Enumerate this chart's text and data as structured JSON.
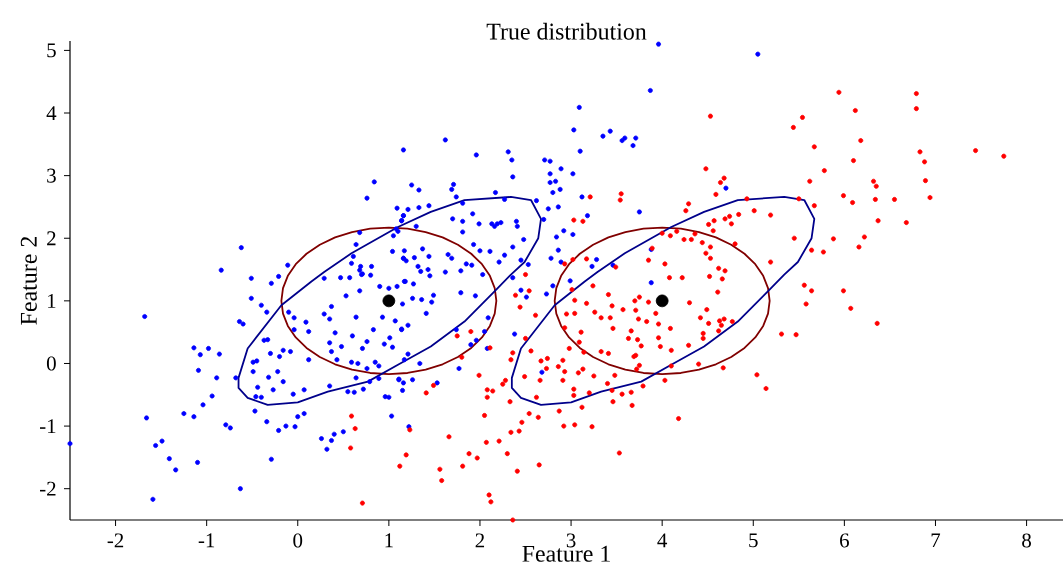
{
  "chart_data": {
    "type": "scatter",
    "title": "True distribution",
    "xlabel": "Feature 1",
    "ylabel": "Feature 2",
    "xlim": [
      -2.5,
      8.4
    ],
    "ylim": [
      -2.5,
      5.15
    ],
    "xticks": [
      -2,
      -1,
      0,
      1,
      2,
      3,
      4,
      5,
      6,
      7,
      8
    ],
    "yticks": [
      -2,
      -1,
      0,
      1,
      2,
      3,
      4,
      5
    ],
    "marker": "circle",
    "series": [
      {
        "color": "#0000ff",
        "x": [
          0.76,
          0.84,
          1.16,
          1.62,
          1.96,
          2.31,
          2.36,
          2.71,
          3.09,
          3.03,
          3.35,
          3.43,
          3.56,
          3.59,
          3.71,
          3.68,
          3.1,
          3.87,
          3.96,
          5.05,
          -1.68,
          -1.66,
          -1.56,
          -1.49,
          -1.41,
          -1.34,
          -1.59,
          -2.5,
          -1.25,
          -1.14,
          -1.1,
          -1.04,
          -0.94,
          -0.89,
          -1.09,
          -1.14,
          -1.07,
          -0.98,
          -0.86,
          -0.79,
          -0.74,
          -0.63,
          -0.68,
          -0.64,
          -0.6,
          -0.51,
          -0.51,
          -0.4,
          -0.34,
          -0.49,
          -0.45,
          -0.49,
          -0.44,
          -0.46,
          -0.4,
          -0.47,
          -0.34,
          -0.29,
          -0.37,
          -0.33,
          -0.3,
          -0.2,
          -0.16,
          -0.08,
          -0.32,
          -0.27,
          -0.22,
          -0.16,
          -0.21,
          -0.13,
          -0.03,
          0,
          0.07,
          -0.05,
          0.07,
          0.26,
          0.32,
          0.37,
          0.4,
          0.5,
          -0.29,
          -0.21,
          -0.1,
          -0.04,
          -0.04,
          0.09,
          0.12,
          0.12,
          -0.84,
          -0.62,
          -0.11,
          0.29,
          0.35,
          0.37,
          0.41,
          0.35,
          0.37,
          0.43,
          0.48,
          0.35,
          0.55,
          0.62,
          0.64,
          0.72,
          0.79,
          0.89,
          0.96,
          1.0,
          1.03,
          1.11,
          1.15,
          0.59,
          0.66,
          0.76,
          0.85,
          0.89,
          0.6,
          0.64,
          0.68,
          0.9,
          1.0,
          1.09,
          0.53,
          0.83,
          0.93,
          1.07,
          1.14,
          1.04,
          0.95,
          1.01,
          0.71,
          0.76,
          0.29,
          0.47,
          0.57,
          0.7,
          1.18,
          1.15,
          0.59,
          0.61,
          0.64,
          0.68,
          0.68,
          0.69,
          0.71,
          0.81,
          0.8,
          1.04,
          1.05,
          1.08,
          1.1,
          1.09,
          1.14,
          1.16,
          1.16,
          1.19,
          1.17,
          1.27,
          1.45,
          1.26,
          1.36,
          1.47,
          1.49,
          1.41,
          1.79,
          1.95,
          1.21,
          1.14,
          1.74,
          2.09,
          2.05,
          1.96,
          1.9,
          2.08,
          1.21,
          1.17,
          1.34,
          1.77,
          1.11,
          1.26,
          1.16,
          1.53,
          1.22,
          2.38,
          2.68,
          2.45,
          2.51,
          2.73,
          2.8,
          2.99,
          3.88,
          2.36,
          2.03,
          2.35,
          2.77,
          2.89,
          2.77,
          2.83,
          2.77,
          2.88,
          2.8,
          3.02,
          3.12,
          2.86,
          2.75,
          2.7,
          2.62,
          3.18,
          3.75,
          4.7,
          2.17,
          1.25,
          1.33,
          1.71,
          1.69,
          1.74,
          1.44,
          1.33,
          1.21,
          1.16,
          1.14,
          1.3,
          1.81,
          1.7,
          1.81,
          1.81,
          1.92,
          1.99,
          2.13,
          2.19,
          2.23,
          2.16,
          2.27,
          2.4,
          2.41,
          2.48,
          2.36,
          2.27,
          1.93,
          2.0,
          2.11,
          1.65,
          1.69,
          1.17,
          1.28,
          1.37,
          1.44,
          1.16,
          1.32,
          1.35,
          1.43,
          1.62,
          1.79,
          1.85,
          1.91,
          2.21,
          2.45,
          2.53,
          2.84,
          2.92,
          2.86,
          2.78,
          2.89,
          3.02,
          3.23,
          3.28,
          3.46,
          3.88
        ],
        "values": [
          2.64,
          2.9,
          3.41,
          3.57,
          3.33,
          3.38,
          2.98,
          3.25,
          4.09,
          3.73,
          3.63,
          3.71,
          3.56,
          3.6,
          3.6,
          3.48,
          3.39,
          4.36,
          5.1,
          4.94,
          0.75,
          -0.87,
          -1.31,
          -1.24,
          -1.52,
          -1.7,
          -2.17,
          -1.28,
          -0.8,
          -0.85,
          -1.58,
          -0.66,
          -0.52,
          -0.23,
          -0.11,
          0.25,
          0.14,
          0.24,
          0.15,
          -0.98,
          -1.03,
          -2.0,
          -0.23,
          0.67,
          0.63,
          1.04,
          1.36,
          0.93,
          0.82,
          0.02,
          0.04,
          -0.13,
          -0.38,
          -0.53,
          -0.54,
          -0.76,
          -0.93,
          -1.53,
          0.37,
          0.38,
          0.16,
          0.11,
          0.21,
          0.19,
          -0.22,
          -0.42,
          -0.13,
          -0.29,
          -1.07,
          -1.0,
          -1.01,
          -0.85,
          -0.8,
          -0.49,
          -0.42,
          -1.2,
          -1.37,
          -1.23,
          -1.13,
          -1.09,
          1.28,
          1.39,
          0.82,
          0.73,
          0.54,
          0.66,
          0.51,
          0.06,
          1.49,
          1.85,
          1.57,
          0.79,
          0.71,
          0.91,
          0.49,
          0.33,
          0.19,
          0.06,
          0.27,
          -0.36,
          -0.45,
          -0.46,
          -0.23,
          -0.41,
          -0.29,
          -0.24,
          -0.53,
          -0.54,
          -0.84,
          -0.26,
          -0.43,
          0.02,
          0.0,
          -0.08,
          0.02,
          -0.04,
          0.44,
          0.74,
          1.16,
          1.23,
          1.2,
          1.23,
          1.08,
          0.54,
          0.74,
          0.68,
          0.54,
          0.26,
          0.31,
          0.41,
          0.24,
          0.35,
          1.36,
          1.37,
          1.37,
          1.42,
          1.31,
          0.95,
          1.6,
          1.71,
          1.9,
          2.09,
          1.49,
          1.55,
          1.43,
          1.55,
          1.41,
          1.79,
          2.04,
          2.15,
          2.11,
          2.48,
          2.28,
          2.36,
          1.68,
          1.64,
          1.31,
          1.27,
          1.4,
          1.04,
          1.02,
          0.98,
          1.09,
          0.8,
          1.13,
          1.08,
          0.61,
          0.55,
          0.54,
          0.73,
          0.51,
          0.37,
          0.3,
          0.24,
          0.15,
          0.06,
          0.0,
          -0.08,
          -0.25,
          -0.26,
          -0.31,
          -0.31,
          -1.01,
          0.47,
          -0.14,
          1.17,
          1.06,
          1.11,
          1.24,
          1.32,
          1.29,
          1.37,
          1.42,
          3.25,
          3.23,
          3.11,
          3.03,
          2.91,
          2.89,
          2.78,
          2.73,
          3.03,
          2.66,
          2.5,
          2.47,
          2.3,
          2.6,
          2.36,
          2.42,
          2.8,
          2.73,
          2.85,
          2.77,
          2.86,
          2.78,
          2.66,
          2.52,
          2.49,
          2.46,
          2.36,
          2.28,
          2.19,
          2.56,
          2.31,
          2.27,
          2.1,
          2.39,
          2.23,
          2.23,
          2.23,
          2.25,
          2.19,
          2.62,
          2.27,
          2.19,
          1.98,
          1.86,
          1.73,
          1.9,
          1.8,
          1.79,
          1.74,
          1.68,
          1.8,
          1.69,
          1.83,
          1.71,
          1.68,
          1.55,
          1.47,
          1.5,
          1.46,
          1.48,
          1.59,
          1.57,
          1.62,
          1.65,
          1.58,
          2.02,
          2.12,
          1.81,
          1.68,
          1.62,
          2.06,
          1.55,
          1.66,
          1.57,
          1.82
        ]
      },
      {
        "color": "#ff0000",
        "x": [
          5.94,
          6.79,
          6.79,
          5.54,
          6.12,
          5.44,
          6.18,
          5.67,
          7.44,
          7.75,
          6.1,
          6.83,
          6.88,
          5.78,
          5.62,
          6.32,
          6.35,
          6.89,
          5.99,
          6.09,
          6.34,
          6.55,
          6.94,
          6.37,
          6.68,
          6.22,
          6.16,
          5.88,
          5.77,
          5.67,
          5.5,
          4.93,
          5.19,
          5.01,
          5.64,
          5.19,
          5.45,
          5.56,
          5.64,
          5.99,
          6.07,
          6.36,
          5.31,
          5.47,
          5.04,
          5.14,
          5.58,
          2.36,
          2.1,
          2.12,
          1.58,
          1.56,
          1.81,
          1.97,
          1.88,
          1.66,
          1.19,
          1.12,
          2.41,
          2.65,
          2.3,
          2.07,
          2.21,
          2.34,
          2.43,
          2.46,
          2.05,
          2.54,
          2.64,
          2.92,
          3.04,
          3.23,
          2.87,
          3.12,
          3.53,
          4.18,
          3.67,
          2.08,
          2.33,
          2.62,
          3.03,
          3.2,
          3.46,
          2.08,
          2.14,
          1.49,
          1.41,
          1.99,
          2.25,
          2.28,
          2.49,
          2.66,
          3.03,
          2.91,
          3.25,
          3.4,
          3.45,
          3.56,
          3.66,
          3.79,
          4.03,
          2.86,
          2.73,
          2.93,
          3.08,
          3.13,
          2.67,
          2.74,
          2.91,
          2.56,
          2.36,
          2.34,
          2.98,
          3.14,
          3.33,
          3.41,
          3.69,
          3.71,
          3.75,
          3.72,
          3.48,
          4.1,
          4.29,
          4.4,
          4.67,
          3.09,
          3.11,
          2.93,
          3.46,
          3.66,
          3.63,
          3.73,
          3.77,
          3.96,
          3.98,
          4.09,
          4.1,
          3.83,
          3.96,
          3.33,
          3.43,
          3.74,
          3.93,
          3.57,
          3.71,
          3.45,
          3.26,
          3.04,
          2.95,
          3.17,
          3.04,
          3.85,
          3.7,
          3.75,
          3.41,
          3.24,
          3.01,
          4.08,
          4.22,
          4.52,
          4.66,
          4.61,
          4.3,
          4.49,
          4.42,
          4.51,
          4.63,
          4.68,
          4.65,
          4.62,
          4.45,
          4.45,
          4.77,
          3.21,
          3.55,
          3.54,
          3.03,
          3.13,
          4.53,
          4.48,
          4.68,
          4.64,
          4.59,
          4.29,
          4.26,
          4.51,
          4.57,
          4.56,
          4.69,
          4.74,
          4.76,
          4.16,
          4.09,
          4.0,
          4.24,
          4.32,
          4.36,
          4.44,
          4.53,
          4.48,
          4.53,
          3.89,
          3.85,
          4.03,
          3.49,
          3.17,
          3.02,
          2.93,
          4.62,
          4.69,
          4.8,
          4.84,
          0.59,
          0.63,
          0.58,
          0.71,
          1.23,
          1.9,
          1.75,
          1.8,
          2.11,
          2.61,
          2.5,
          2.44,
          2.39,
          2.54,
          2.5
        ],
        "values": [
          4.33,
          4.31,
          4.07,
          3.93,
          4.04,
          3.77,
          3.56,
          3.46,
          3.4,
          3.31,
          3.24,
          3.38,
          3.22,
          3.08,
          2.91,
          2.91,
          2.83,
          2.92,
          2.68,
          2.57,
          2.62,
          2.62,
          2.65,
          2.28,
          2.25,
          2.02,
          1.86,
          1.99,
          1.78,
          2.52,
          2.63,
          2.63,
          2.37,
          2.44,
          1.81,
          1.62,
          2.0,
          1.25,
          1.16,
          1.16,
          0.88,
          0.64,
          0.47,
          0.46,
          -0.18,
          -0.4,
          0.95,
          -2.5,
          -2.1,
          -2.21,
          -1.87,
          -1.69,
          -1.64,
          -1.51,
          -1.44,
          -1.17,
          -1.46,
          -1.64,
          -1.72,
          -1.62,
          -1.44,
          -1.26,
          -1.24,
          -1.1,
          -1.08,
          -0.94,
          -0.83,
          -0.8,
          -0.86,
          -1.0,
          -0.98,
          -1.01,
          -0.76,
          -0.7,
          -1.43,
          -0.88,
          -0.67,
          -0.54,
          -0.61,
          -0.54,
          -0.51,
          -0.47,
          -0.61,
          -0.42,
          -0.44,
          -0.35,
          -0.47,
          -0.19,
          -0.33,
          -0.27,
          -0.21,
          -0.27,
          -0.41,
          -0.27,
          -0.2,
          -0.32,
          -0.43,
          -0.49,
          -0.46,
          -0.36,
          -0.27,
          -0.05,
          -0.08,
          -0.13,
          -0.15,
          -0.09,
          0.04,
          0.08,
          0.05,
          0.2,
          0.17,
          0.06,
          0.24,
          0.18,
          0.19,
          0.16,
          0.11,
          0.13,
          -0.03,
          -0.09,
          -0.19,
          -0.04,
          0.29,
          -0.01,
          -0.07,
          0.34,
          0.5,
          0.57,
          0.56,
          0.52,
          0.4,
          0.38,
          0.28,
          0.41,
          0.27,
          0.56,
          0.21,
          0.67,
          0.63,
          0.73,
          0.73,
          0.71,
          0.8,
          0.86,
          0.85,
          0.92,
          0.82,
          0.8,
          0.79,
          0.96,
          1.01,
          0.98,
          1.0,
          1.06,
          1.1,
          1.24,
          1.18,
          1.37,
          1.37,
          1.39,
          1.35,
          1.14,
          0.97,
          0.86,
          0.73,
          0.64,
          0.68,
          0.71,
          0.61,
          0.52,
          0.48,
          0.4,
          0.67,
          2.66,
          2.71,
          2.61,
          2.29,
          2.27,
          3.95,
          3.11,
          2.96,
          2.89,
          2.7,
          2.55,
          2.44,
          2.22,
          2.28,
          2.12,
          2.31,
          2.35,
          2.23,
          2.11,
          2.04,
          2.08,
          1.98,
          1.98,
          2.07,
          1.93,
          1.86,
          1.76,
          1.68,
          1.84,
          1.65,
          1.59,
          1.54,
          1.67,
          1.66,
          1.59,
          1.52,
          1.48,
          1.91,
          2.38,
          -0.84,
          -1.04,
          -1.35,
          -2.23,
          -1.06,
          0.51,
          0.44,
          0.1,
          0.25,
          0.77,
          0.4,
          0.9,
          1.09,
          1.16,
          1.42
        ]
      },
      {
        "color": "#000000",
        "x": [
          1,
          4
        ],
        "values": [
          1,
          1
        ]
      }
    ]
  }
}
